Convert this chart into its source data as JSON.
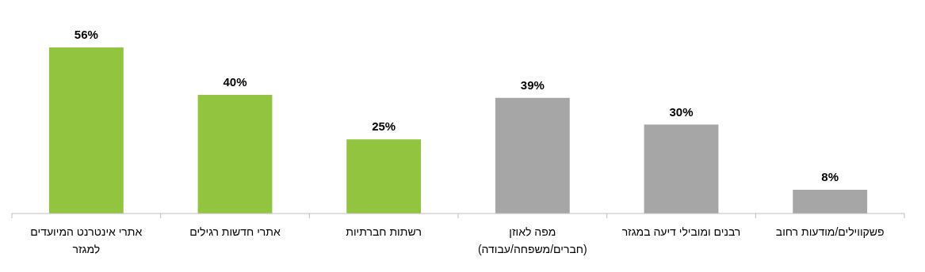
{
  "chart_data": {
    "type": "bar",
    "categories": [
      "אתרי אינטרנט המיועדים למגזר",
      "אתרי חדשות רגילים",
      "רשתות חברתיות",
      "מפה לאוזן (חברים/משפחה/עבודה)",
      "רבנים ומובילי דיעה במגזר",
      "פשקווילים/מודעות רחוב"
    ],
    "values": [
      56,
      40,
      25,
      39,
      30,
      8
    ],
    "colors": [
      "#92c43f",
      "#92c43f",
      "#92c43f",
      "#a6a6a6",
      "#a6a6a6",
      "#a6a6a6"
    ],
    "value_labels": [
      "56%",
      "40%",
      "25%",
      "39%",
      "30%",
      "8%"
    ]
  }
}
